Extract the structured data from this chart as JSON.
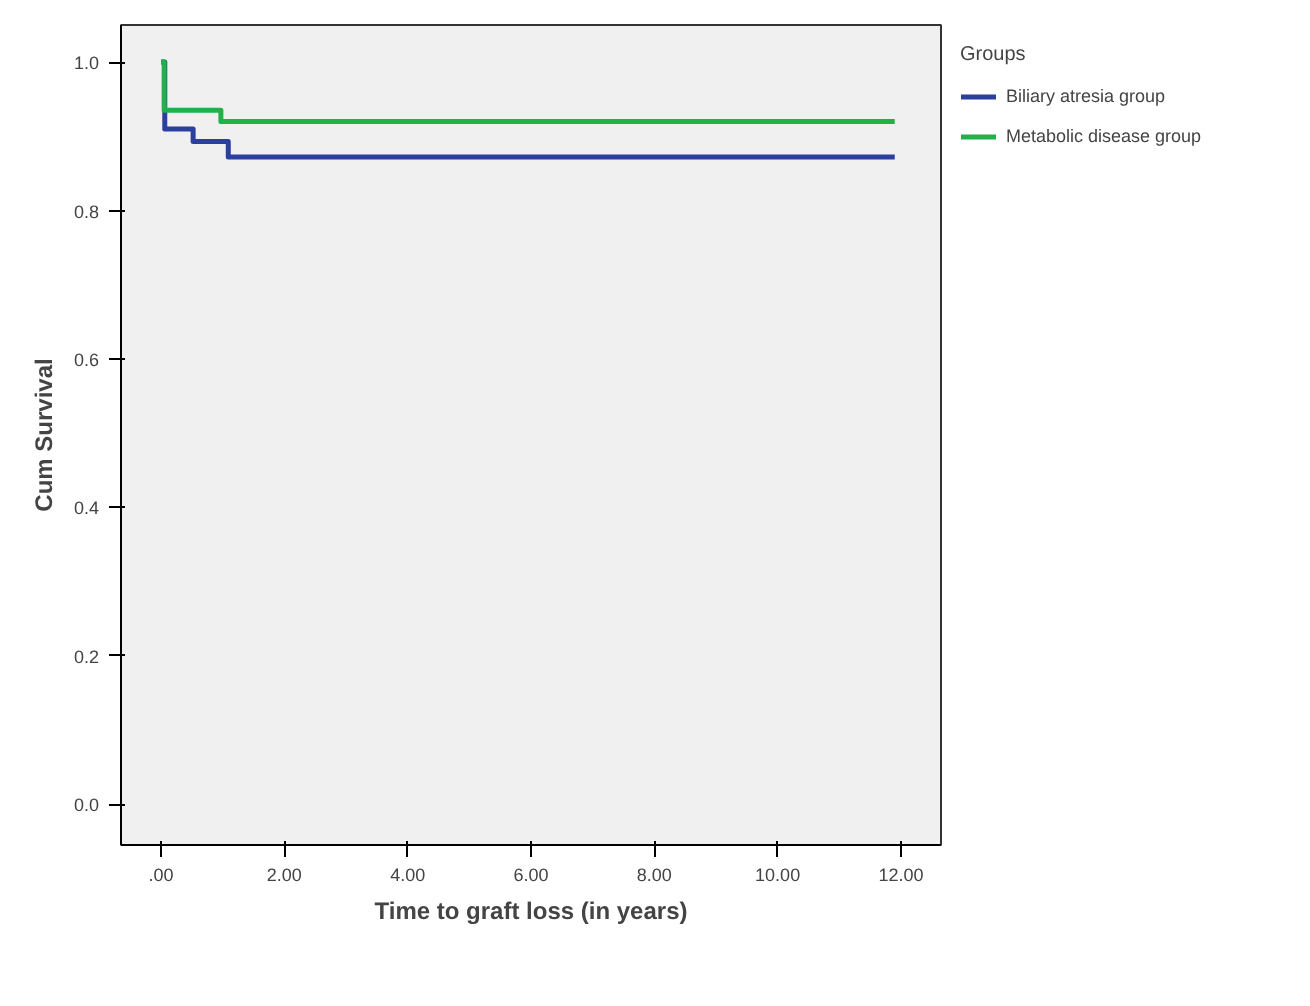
{
  "chart_data": {
    "type": "step",
    "xlabel": "Time to graft loss (in years)",
    "ylabel": "Cum Survival",
    "legend_title": "Groups",
    "legend": "right",
    "xlim": [
      -0.65,
      12.65
    ],
    "ylim": [
      -0.055,
      1.05
    ],
    "xticks": [
      {
        "value": 0,
        "label": ".00"
      },
      {
        "value": 2,
        "label": "2.00"
      },
      {
        "value": 4,
        "label": "4.00"
      },
      {
        "value": 6,
        "label": "6.00"
      },
      {
        "value": 8,
        "label": "8.00"
      },
      {
        "value": 10,
        "label": "10.00"
      },
      {
        "value": 12,
        "label": "12.00"
      }
    ],
    "yticks": [
      {
        "value": 0,
        "label": "0.0"
      },
      {
        "value": 0.2,
        "label": "0.2"
      },
      {
        "value": 0.4,
        "label": "0.4"
      },
      {
        "value": 0.6,
        "label": "0.6"
      },
      {
        "value": 0.8,
        "label": "0.8"
      },
      {
        "value": 1.0,
        "label": "1.0"
      }
    ],
    "grid": false,
    "series": [
      {
        "name": "Biliary atresia group",
        "color": "#2b3f9e",
        "x": [
          0,
          0.06,
          0.52,
          1.09,
          11.9
        ],
        "values": [
          1.0,
          0.91,
          0.893,
          0.872,
          0.872
        ]
      },
      {
        "name": "Metabolic disease group",
        "color": "#22b04a",
        "x": [
          0,
          0.05,
          0.97,
          11.9
        ],
        "values": [
          1.0,
          0.935,
          0.92,
          0.92
        ]
      }
    ]
  }
}
